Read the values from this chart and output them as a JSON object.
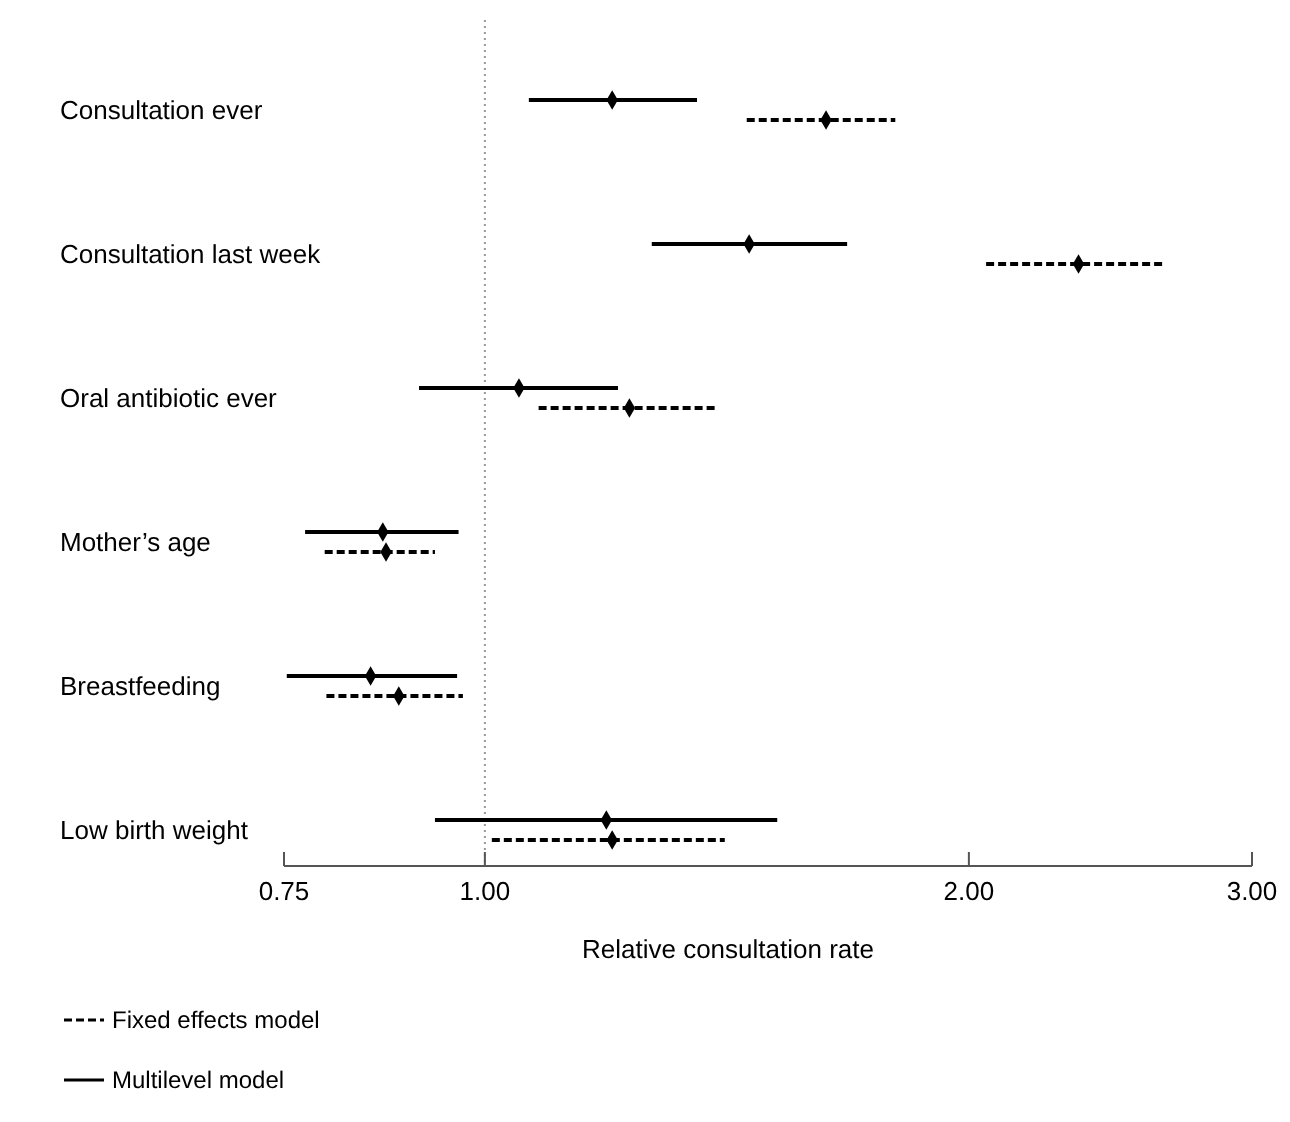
{
  "chart_data": {
    "type": "scatter",
    "orientation": "horizontal",
    "xlabel": "Relative consultation rate",
    "categories": [
      "Consultation ever",
      "Consultation last week",
      "Oral antibiotic ever",
      "Mother’s age",
      "Breastfeeding",
      "Low birth weight"
    ],
    "series": [
      {
        "name": "Multilevel model",
        "color": "#000000",
        "line_style": "solid",
        "values": [
          1.2,
          1.46,
          1.05,
          0.864,
          0.849,
          1.19
        ],
        "errors": [
          [
            1.065,
            1.355
          ],
          [
            1.27,
            1.68
          ],
          [
            0.91,
            1.21
          ],
          [
            0.773,
            0.963
          ],
          [
            0.753,
            0.961
          ],
          [
            0.931,
            1.52
          ]
        ]
      },
      {
        "name": "Fixed effects model",
        "color": "#000000",
        "line_style": "dashed",
        "values": [
          1.63,
          2.34,
          1.23,
          0.868,
          0.884,
          1.2
        ],
        "errors": [
          [
            1.455,
            1.8
          ],
          [
            2.05,
            2.65
          ],
          [
            1.08,
            1.39
          ],
          [
            0.795,
            0.931
          ],
          [
            0.797,
            0.969
          ],
          [
            1.01,
            1.41
          ]
        ]
      }
    ],
    "marker": "diamond",
    "log": "x",
    "xlim": [
      0.75,
      3
    ],
    "xticks": [
      {
        "value": 0.75,
        "label": "0.75"
      },
      {
        "value": 1,
        "label": "1.00"
      },
      {
        "value": 2,
        "label": "2.00"
      },
      {
        "value": 3,
        "label": "3.00"
      }
    ],
    "ref_lines": [
      {
        "axis": "x",
        "value": 1,
        "color": "#999999",
        "line_style": "dotted"
      }
    ],
    "grid": false,
    "legend": "bottom left"
  }
}
